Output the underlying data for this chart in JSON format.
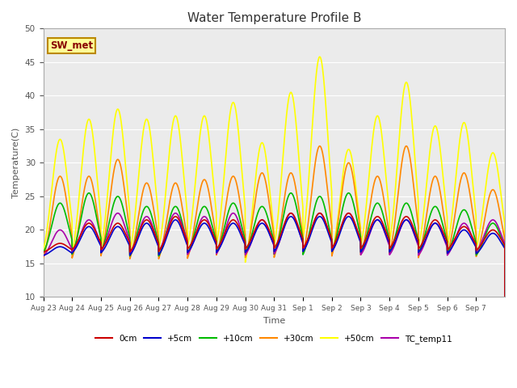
{
  "title": "Water Temperature Profile B",
  "xlabel": "Time",
  "ylabel": "Temperature(C)",
  "ylim": [
    10,
    50
  ],
  "legend_label": "SW_met",
  "legend_box_color": "#FFFF99",
  "legend_box_edge": "#BB8800",
  "background_color": "#EBEBEB",
  "series": {
    "0cm": {
      "color": "#CC0000",
      "lw": 1.2,
      "zorder": 7
    },
    "+5cm": {
      "color": "#0000CC",
      "lw": 1.2,
      "zorder": 6
    },
    "+10cm": {
      "color": "#00BB00",
      "lw": 1.2,
      "zorder": 5
    },
    "+30cm": {
      "color": "#FF8800",
      "lw": 1.2,
      "zorder": 4
    },
    "+50cm": {
      "color": "#FFFF00",
      "lw": 1.2,
      "zorder": 3
    },
    "TC_temp11": {
      "color": "#AA00AA",
      "lw": 1.2,
      "zorder": 6
    }
  },
  "tick_labels": [
    "Aug 23",
    "Aug 24",
    "Aug 25",
    "Aug 26",
    "Aug 27",
    "Aug 28",
    "Aug 29",
    "Aug 30",
    "Aug 31",
    "Sep 1",
    "Sep 2",
    "Sep 3",
    "Sep 4",
    "Sep 5",
    "Sep 6",
    "Sep 7"
  ],
  "num_days": 16,
  "points_per_day": 240,
  "peak_hour": 14.0,
  "trough_hour": 6.0,
  "sharpness": 6.0,
  "day_peaks": {
    "0cm": [
      18.0,
      21.0,
      21.0,
      21.5,
      22.0,
      21.5,
      21.5,
      21.5,
      22.5,
      22.5,
      22.5,
      22.0,
      22.0,
      21.5,
      20.5,
      20.0
    ],
    "+5cm": [
      17.5,
      20.5,
      20.5,
      21.0,
      21.5,
      21.0,
      21.0,
      21.0,
      22.0,
      22.0,
      22.0,
      21.5,
      21.5,
      21.0,
      20.0,
      19.5
    ],
    "+10cm": [
      24.0,
      25.5,
      25.0,
      23.5,
      23.5,
      23.5,
      24.0,
      23.5,
      25.5,
      25.0,
      25.5,
      24.0,
      24.0,
      23.5,
      23.0,
      21.0
    ],
    "+30cm": [
      28.0,
      28.0,
      30.5,
      27.0,
      27.0,
      27.5,
      28.0,
      28.5,
      28.5,
      32.5,
      30.0,
      28.0,
      32.5,
      28.0,
      28.5,
      26.0
    ],
    "+50cm": [
      33.5,
      36.5,
      38.0,
      36.5,
      37.0,
      37.0,
      39.0,
      33.0,
      40.5,
      45.8,
      32.0,
      37.0,
      42.0,
      35.5,
      36.0,
      31.5
    ],
    "TC_temp11": [
      20.0,
      21.5,
      22.5,
      22.0,
      22.5,
      22.0,
      22.5,
      21.5,
      22.5,
      22.5,
      22.5,
      21.5,
      21.5,
      21.0,
      21.0,
      21.5
    ]
  },
  "day_troughs": {
    "0cm": [
      16.5,
      16.5,
      16.5,
      16.0,
      16.0,
      16.5,
      16.5,
      16.5,
      16.5,
      16.5,
      16.5,
      16.5,
      16.5,
      16.5,
      16.5,
      16.5
    ],
    "+5cm": [
      16.0,
      16.0,
      16.0,
      15.5,
      15.5,
      16.0,
      16.0,
      16.0,
      16.0,
      16.0,
      16.0,
      16.0,
      16.0,
      16.0,
      16.0,
      16.0
    ],
    "+10cm": [
      15.5,
      15.0,
      15.5,
      15.0,
      15.0,
      15.5,
      15.5,
      15.5,
      15.0,
      15.0,
      15.5,
      15.5,
      15.5,
      15.5,
      15.5,
      15.5
    ],
    "+30cm": [
      14.0,
      14.0,
      14.0,
      14.0,
      14.0,
      14.0,
      14.5,
      14.0,
      14.0,
      14.0,
      14.0,
      14.5,
      14.0,
      14.0,
      14.5,
      14.5
    ],
    "+50cm": [
      14.5,
      13.5,
      14.0,
      13.5,
      14.0,
      14.5,
      14.5,
      12.5,
      14.0,
      14.5,
      14.0,
      14.5,
      14.5,
      14.5,
      14.5,
      15.0
    ],
    "TC_temp11": [
      15.5,
      16.0,
      16.0,
      15.5,
      16.0,
      15.5,
      15.5,
      15.5,
      15.5,
      16.0,
      16.0,
      15.5,
      15.5,
      15.5,
      15.5,
      16.0
    ]
  }
}
